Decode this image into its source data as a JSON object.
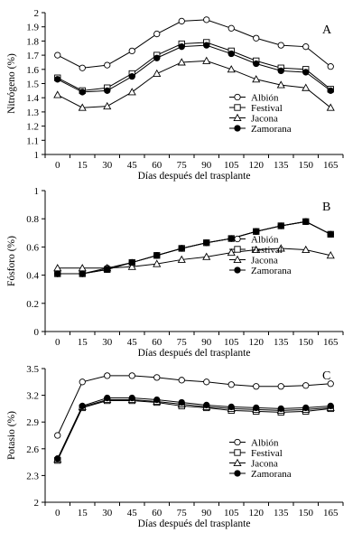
{
  "chart_data": [
    {
      "type": "line",
      "panel_label": "A",
      "xlabel": "Días después del trasplante",
      "ylabel": "Nitrógeno (%)",
      "x": [
        0,
        15,
        30,
        45,
        60,
        75,
        90,
        105,
        120,
        135,
        150,
        165
      ],
      "x_tick_labels": [
        "0",
        "15",
        "30",
        "45",
        "60",
        "75",
        "90",
        "105",
        "120",
        "135",
        "150",
        "165"
      ],
      "ylim": [
        1,
        2
      ],
      "y_ticks": [
        1,
        1.1,
        1.2,
        1.3,
        1.4,
        1.5,
        1.6,
        1.7,
        1.8,
        1.9,
        2
      ],
      "y_tick_labels": [
        "1",
        "1.1",
        "1.2",
        "1.3",
        "1.4",
        "1.5",
        "1.6",
        "1.7",
        "1.8",
        "1.9",
        "2"
      ],
      "grid": false,
      "legend_position": "right",
      "series": [
        {
          "name": "Albión",
          "marker": "circle-open",
          "values": [
            1.7,
            1.61,
            1.63,
            1.73,
            1.85,
            1.94,
            1.95,
            1.89,
            1.82,
            1.77,
            1.76,
            1.62
          ]
        },
        {
          "name": "Festival",
          "marker": "square-open",
          "values": [
            1.54,
            1.45,
            1.47,
            1.57,
            1.7,
            1.78,
            1.79,
            1.73,
            1.66,
            1.61,
            1.6,
            1.46
          ]
        },
        {
          "name": "Jacona",
          "marker": "triangle-open",
          "values": [
            1.42,
            1.33,
            1.34,
            1.44,
            1.57,
            1.65,
            1.66,
            1.6,
            1.53,
            1.49,
            1.47,
            1.33
          ]
        },
        {
          "name": "Zamorana",
          "marker": "circle-filled",
          "values": [
            1.53,
            1.44,
            1.45,
            1.55,
            1.68,
            1.76,
            1.77,
            1.71,
            1.64,
            1.59,
            1.58,
            1.45
          ]
        }
      ]
    },
    {
      "type": "line",
      "panel_label": "B",
      "xlabel": "Días después del trasplante",
      "ylabel": "Fósforo (%)",
      "x": [
        0,
        15,
        30,
        45,
        60,
        75,
        90,
        105,
        120,
        135,
        150,
        165
      ],
      "x_tick_labels": [
        "0",
        "15",
        "30",
        "45",
        "60",
        "75",
        "90",
        "105",
        "120",
        "135",
        "150",
        "165"
      ],
      "ylim": [
        0,
        1
      ],
      "y_ticks": [
        0,
        0.2,
        0.4,
        0.6,
        0.8,
        1
      ],
      "y_tick_labels": [
        "0",
        "0.2",
        "0.4",
        "0.6",
        "0.8",
        "1"
      ],
      "grid": false,
      "legend_position": "right",
      "series": [
        {
          "name": "Albión",
          "marker": "circle-open",
          "values": [
            0.41,
            0.41,
            0.45,
            0.49,
            0.54,
            0.59,
            0.63,
            0.66,
            0.71,
            0.75,
            0.78,
            0.69
          ]
        },
        {
          "name": "Festival",
          "marker": "square-open",
          "values": [
            0.41,
            0.41,
            0.44,
            0.49,
            0.54,
            0.59,
            0.63,
            0.66,
            0.71,
            0.75,
            0.78,
            0.69
          ]
        },
        {
          "name": "Jacona",
          "marker": "triangle-open",
          "values": [
            0.45,
            0.45,
            0.45,
            0.46,
            0.48,
            0.51,
            0.53,
            0.56,
            0.58,
            0.59,
            0.58,
            0.54
          ]
        },
        {
          "name": "Zamorana",
          "marker": "circle-filled",
          "values": [
            0.41,
            0.41,
            0.44,
            0.49,
            0.54,
            0.59,
            0.63,
            0.66,
            0.71,
            0.75,
            0.78,
            0.69
          ]
        }
      ]
    },
    {
      "type": "line",
      "panel_label": "C",
      "xlabel": "Días después del trasplante",
      "ylabel": "Potasio (%)",
      "x": [
        0,
        15,
        30,
        45,
        60,
        75,
        90,
        105,
        120,
        135,
        150,
        165
      ],
      "x_tick_labels": [
        "0",
        "15",
        "30",
        "45",
        "60",
        "75",
        "90",
        "105",
        "120",
        "135",
        "150",
        "165"
      ],
      "ylim": [
        2,
        3.5
      ],
      "y_ticks": [
        2,
        2.3,
        2.6,
        2.9,
        3.2,
        3.5
      ],
      "y_tick_labels": [
        "2",
        "2.3",
        "2.6",
        "2.9",
        "3.2",
        "3.5"
      ],
      "grid": false,
      "legend_position": "right",
      "series": [
        {
          "name": "Albión",
          "marker": "circle-open",
          "values": [
            2.75,
            3.35,
            3.42,
            3.42,
            3.4,
            3.37,
            3.35,
            3.32,
            3.3,
            3.3,
            3.31,
            3.33
          ]
        },
        {
          "name": "Festival",
          "marker": "square-open",
          "values": [
            2.47,
            3.06,
            3.14,
            3.14,
            3.12,
            3.08,
            3.06,
            3.03,
            3.02,
            3.01,
            3.02,
            3.05
          ]
        },
        {
          "name": "Jacona",
          "marker": "triangle-open",
          "values": [
            2.48,
            3.07,
            3.15,
            3.15,
            3.13,
            3.1,
            3.07,
            3.05,
            3.04,
            3.03,
            3.04,
            3.06
          ]
        },
        {
          "name": "Zamorana",
          "marker": "circle-filled",
          "values": [
            2.49,
            3.08,
            3.17,
            3.17,
            3.15,
            3.12,
            3.09,
            3.07,
            3.06,
            3.05,
            3.06,
            3.08
          ]
        }
      ]
    }
  ]
}
